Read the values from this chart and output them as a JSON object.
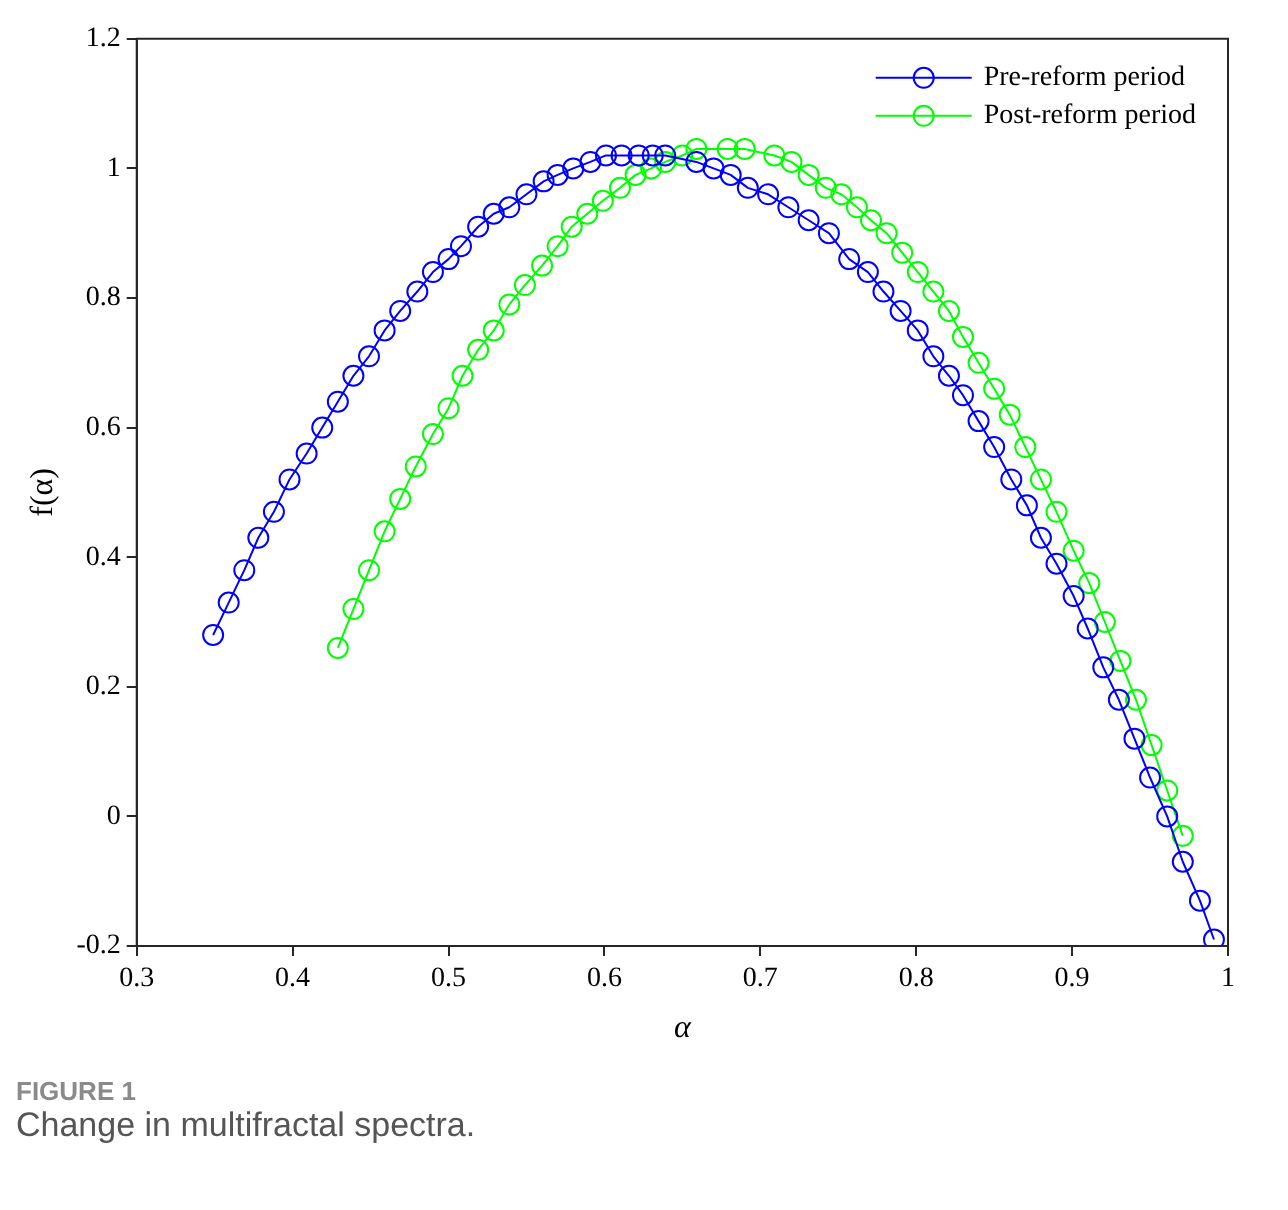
{
  "chart_data": {
    "type": "line",
    "xlabel": "α",
    "ylabel": "f(α)",
    "xlim": [
      0.3,
      1
    ],
    "xticks": [
      0.3,
      0.4,
      0.5,
      0.6,
      0.7,
      0.8,
      0.9,
      1
    ],
    "ylim": [
      -0.2,
      1.2
    ],
    "yticks": [
      -0.2,
      0,
      0.2,
      0.4,
      0.6,
      0.8,
      1,
      1.2
    ],
    "grid": false,
    "legend": "top right",
    "marker": "circle",
    "line_style": "solid",
    "annotations": [
      "FIGURE 1",
      "Change in multifractal spectra."
    ],
    "series": [
      {
        "name": "Pre-reform period",
        "color": "#0000ff",
        "x": [
          0.349,
          0.359,
          0.369,
          0.378,
          0.388,
          0.398,
          0.409,
          0.419,
          0.429,
          0.439,
          0.449,
          0.459,
          0.469,
          0.48,
          0.49,
          0.5,
          0.508,
          0.519,
          0.529,
          0.539,
          0.55,
          0.561,
          0.57,
          0.58,
          0.591,
          0.601,
          0.611,
          0.622,
          0.631,
          0.639,
          0.659,
          0.67,
          0.681,
          0.692,
          0.705,
          0.718,
          0.731,
          0.744,
          0.757,
          0.769,
          0.779,
          0.79,
          0.801,
          0.811,
          0.821,
          0.83,
          0.84,
          0.85,
          0.861,
          0.871,
          0.88,
          0.89,
          0.901,
          0.91,
          0.92,
          0.93,
          0.94,
          0.95,
          0.961,
          0.971,
          0.982,
          0.991
        ],
        "values": [
          0.28,
          0.33,
          0.38,
          0.43,
          0.47,
          0.52,
          0.56,
          0.6,
          0.64,
          0.68,
          0.71,
          0.75,
          0.78,
          0.81,
          0.84,
          0.86,
          0.88,
          0.91,
          0.93,
          0.94,
          0.96,
          0.98,
          0.99,
          1.0,
          1.01,
          1.02,
          1.02,
          1.02,
          1.02,
          1.02,
          1.01,
          1.0,
          0.99,
          0.97,
          0.96,
          0.94,
          0.92,
          0.9,
          0.86,
          0.84,
          0.81,
          0.78,
          0.75,
          0.71,
          0.68,
          0.65,
          0.61,
          0.57,
          0.52,
          0.48,
          0.43,
          0.39,
          0.34,
          0.29,
          0.23,
          0.18,
          0.12,
          0.06,
          0.0,
          -0.07,
          -0.13,
          -0.19
        ]
      },
      {
        "name": "Post-reform period",
        "color": "#00ff00",
        "x": [
          0.429,
          0.439,
          0.449,
          0.459,
          0.469,
          0.479,
          0.49,
          0.5,
          0.509,
          0.519,
          0.529,
          0.539,
          0.549,
          0.56,
          0.57,
          0.579,
          0.589,
          0.599,
          0.61,
          0.62,
          0.63,
          0.639,
          0.65,
          0.659,
          0.679,
          0.69,
          0.709,
          0.72,
          0.731,
          0.742,
          0.752,
          0.762,
          0.771,
          0.781,
          0.791,
          0.801,
          0.811,
          0.821,
          0.83,
          0.84,
          0.85,
          0.86,
          0.87,
          0.88,
          0.89,
          0.901,
          0.911,
          0.921,
          0.931,
          0.941,
          0.951,
          0.961,
          0.971
        ],
        "values": [
          0.26,
          0.32,
          0.38,
          0.44,
          0.49,
          0.54,
          0.59,
          0.63,
          0.68,
          0.72,
          0.75,
          0.79,
          0.82,
          0.85,
          0.88,
          0.91,
          0.93,
          0.95,
          0.97,
          0.99,
          1.0,
          1.01,
          1.02,
          1.03,
          1.03,
          1.03,
          1.02,
          1.01,
          0.99,
          0.97,
          0.96,
          0.94,
          0.92,
          0.9,
          0.87,
          0.84,
          0.81,
          0.78,
          0.74,
          0.7,
          0.66,
          0.62,
          0.57,
          0.52,
          0.47,
          0.41,
          0.36,
          0.3,
          0.24,
          0.18,
          0.11,
          0.04,
          -0.03
        ]
      }
    ]
  }
}
